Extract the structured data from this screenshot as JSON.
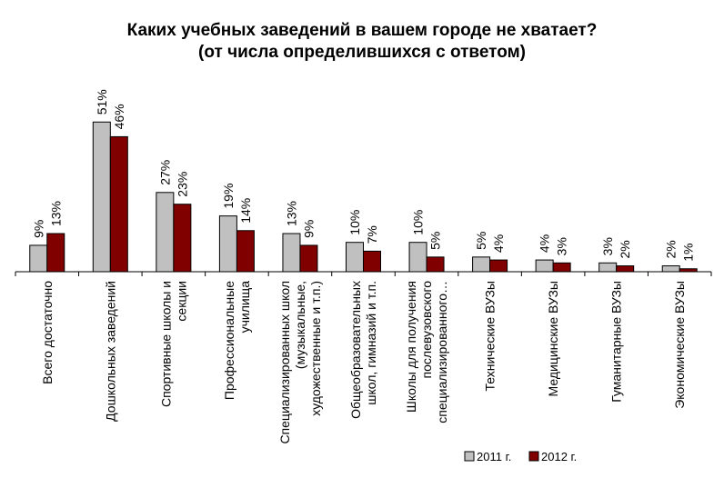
{
  "chart_data": {
    "type": "bar",
    "title": "Каких учебных заведений в вашем городе не хватает?",
    "subtitle": "(от числа определившихся с ответом)",
    "xlabel": "",
    "ylabel": "",
    "ylim": [
      0,
      55
    ],
    "grid": false,
    "legend_position": "bottom-right",
    "categories": [
      [
        "Всего достаточно"
      ],
      [
        "Дошкольных заведений"
      ],
      [
        "Спортивные школы и",
        "секции"
      ],
      [
        "Профессиональные",
        "училища"
      ],
      [
        "Специализированных  школ",
        "(музыкальные,",
        "художественные и т.п.)"
      ],
      [
        "Общеобразовательных",
        "школ, гимназий и т.п."
      ],
      [
        "Школы для получения",
        "послевузовского",
        "специализированного…"
      ],
      [
        "Технические  ВУЗы"
      ],
      [
        "Медицинские ВУЗы"
      ],
      [
        "Гуманитарные ВУЗы"
      ],
      [
        "Экономические ВУЗы"
      ]
    ],
    "series": [
      {
        "name": "2011 г.",
        "color": "#c0c0c0",
        "values": [
          9,
          51,
          27,
          19,
          13,
          10,
          10,
          5,
          4,
          3,
          2
        ],
        "labels": [
          "9%",
          "51%",
          "27%",
          "19%",
          "13%",
          "10%",
          "10%",
          "5%",
          "4%",
          "3%",
          "2%"
        ]
      },
      {
        "name": "2012 г.",
        "color": "#800000",
        "values": [
          13,
          46,
          23,
          14,
          9,
          7,
          5,
          4,
          3,
          2,
          1
        ],
        "labels": [
          "13%",
          "46%",
          "23%",
          "14%",
          "9%",
          "7%",
          "5%",
          "4%",
          "3%",
          "2%",
          "1%"
        ]
      }
    ]
  }
}
